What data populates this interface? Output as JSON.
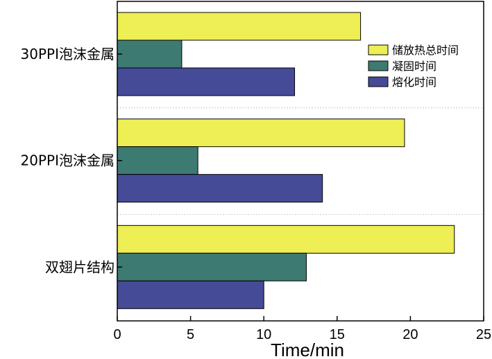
{
  "chart_data": {
    "type": "bar",
    "orientation": "horizontal",
    "categories": [
      "30PPI泡沫金属",
      "20PPI泡沫金属",
      "双翅片结构"
    ],
    "series": [
      {
        "name": "储放热总时间",
        "color": "#eeee55",
        "values": [
          16.6,
          19.6,
          23.0
        ]
      },
      {
        "name": "凝固时间",
        "color": "#3d7a72",
        "values": [
          4.4,
          5.5,
          12.9
        ]
      },
      {
        "name": "熔化时间",
        "color": "#454b96",
        "values": [
          12.1,
          14.0,
          10.0
        ]
      }
    ],
    "xlabel": "Time/min",
    "ylabel": "",
    "xlim": [
      0,
      25
    ],
    "xticks": [
      0,
      5,
      10,
      15,
      20,
      25
    ],
    "grid": "dotted separators between groups",
    "legend_position": "top-right"
  }
}
